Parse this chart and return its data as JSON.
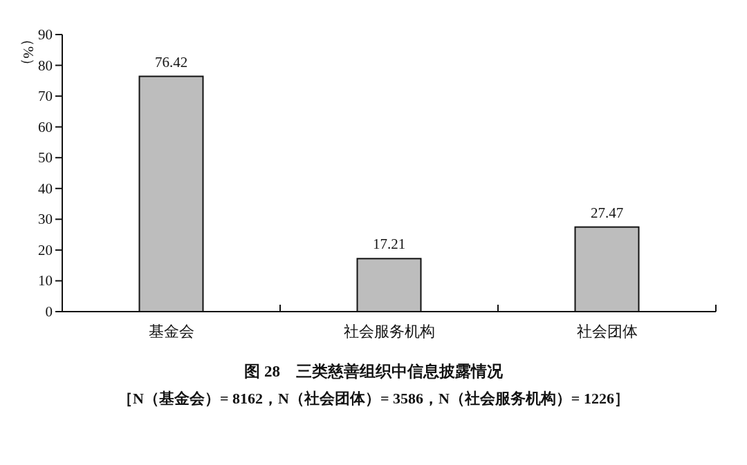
{
  "chart_data": {
    "type": "bar",
    "title": "图 28　三类慈善组织中信息披露情况",
    "subtitle": "［N（基金会）= 8162，N（社会团体）= 3586，N（社会服务机构）= 1226］",
    "ylabel": "（%）",
    "categories": [
      "基金会",
      "社会服务机构",
      "社会团体"
    ],
    "values": [
      76.42,
      17.21,
      27.47
    ],
    "color": "#bdbdbd",
    "ylim": [
      0,
      90
    ],
    "yticks": [
      0,
      10,
      20,
      30,
      40,
      50,
      60,
      70,
      80,
      90
    ],
    "data_labels": true,
    "grid": false
  }
}
